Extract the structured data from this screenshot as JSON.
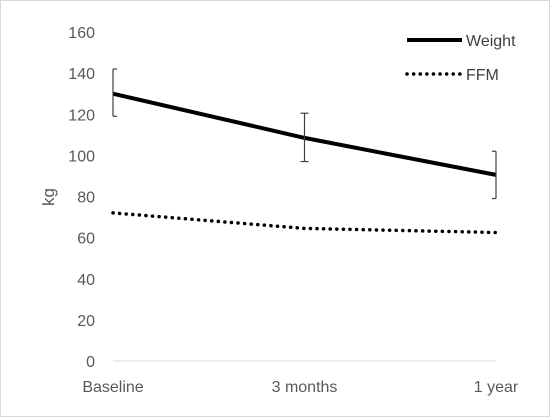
{
  "chart_data": {
    "type": "line",
    "categories": [
      "Baseline",
      "3 months",
      "1 year"
    ],
    "ylabel": "kg",
    "ylim": [
      0,
      160
    ],
    "yticks": [
      0,
      20,
      40,
      60,
      80,
      100,
      120,
      140,
      160
    ],
    "grid": false,
    "legend": "top-right",
    "series": [
      {
        "name": "Weight",
        "values": [
          130,
          108.5,
          90.5
        ],
        "error_low": [
          119,
          97,
          79
        ],
        "error_high": [
          142,
          120.5,
          102
        ],
        "style": "solid",
        "color": "#000000"
      },
      {
        "name": "FFM",
        "values": [
          72,
          64.5,
          62.5
        ],
        "style": "dotted",
        "color": "#000000"
      }
    ]
  }
}
